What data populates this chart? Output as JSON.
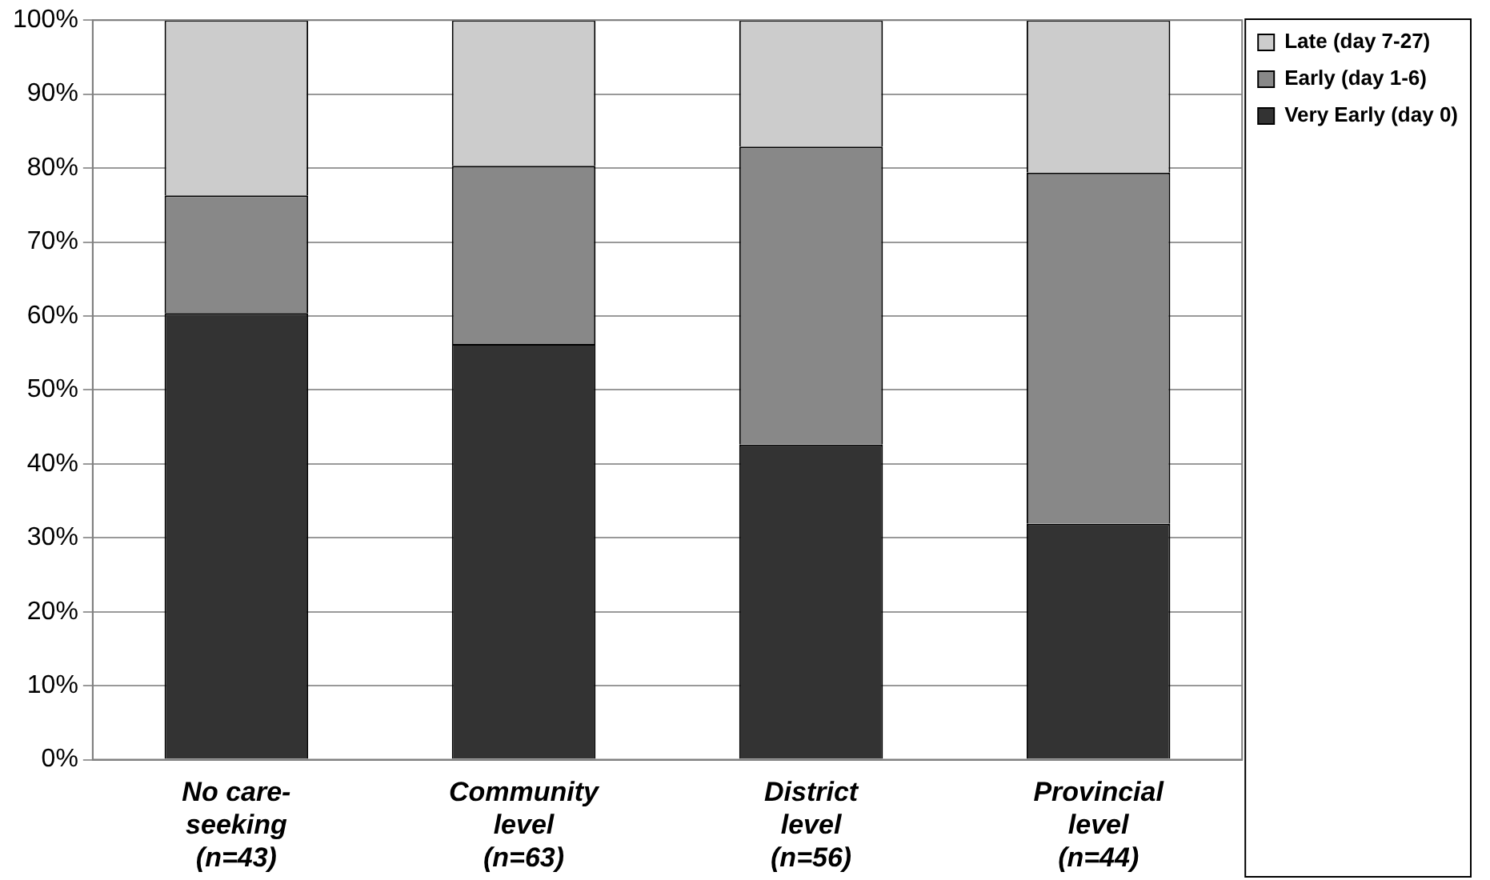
{
  "chart_data": {
    "type": "bar",
    "stacked": true,
    "categories": [
      "No care-\nseeking\n(n=43)",
      "Community\nlevel\n(n=63)",
      "District\nlevel\n(n=56)",
      "Provincial\nlevel\n(n=44)"
    ],
    "series": [
      {
        "name": "Very Early (day 0)",
        "color": "#333333",
        "values": [
          60.4,
          56.2,
          42.6,
          31.9
        ]
      },
      {
        "name": "Early (day 1-6)",
        "color": "#888888",
        "values": [
          15.9,
          24.1,
          40.3,
          47.5
        ]
      },
      {
        "name": "Late (day 7-27)",
        "color": "#cccccc",
        "values": [
          23.7,
          19.7,
          17.1,
          20.6
        ]
      }
    ],
    "ylim": [
      0,
      100
    ],
    "yticks": [
      {
        "value": 0,
        "label": "0%"
      },
      {
        "value": 10,
        "label": "10%"
      },
      {
        "value": 20,
        "label": "20%"
      },
      {
        "value": 30,
        "label": "30%"
      },
      {
        "value": 40,
        "label": "40%"
      },
      {
        "value": 50,
        "label": "50%"
      },
      {
        "value": 60,
        "label": "60%"
      },
      {
        "value": 70,
        "label": "70%"
      },
      {
        "value": 80,
        "label": "80%"
      },
      {
        "value": 90,
        "label": "90%"
      },
      {
        "value": 100,
        "label": "100%"
      }
    ],
    "grid": "y",
    "legend": "top right"
  }
}
